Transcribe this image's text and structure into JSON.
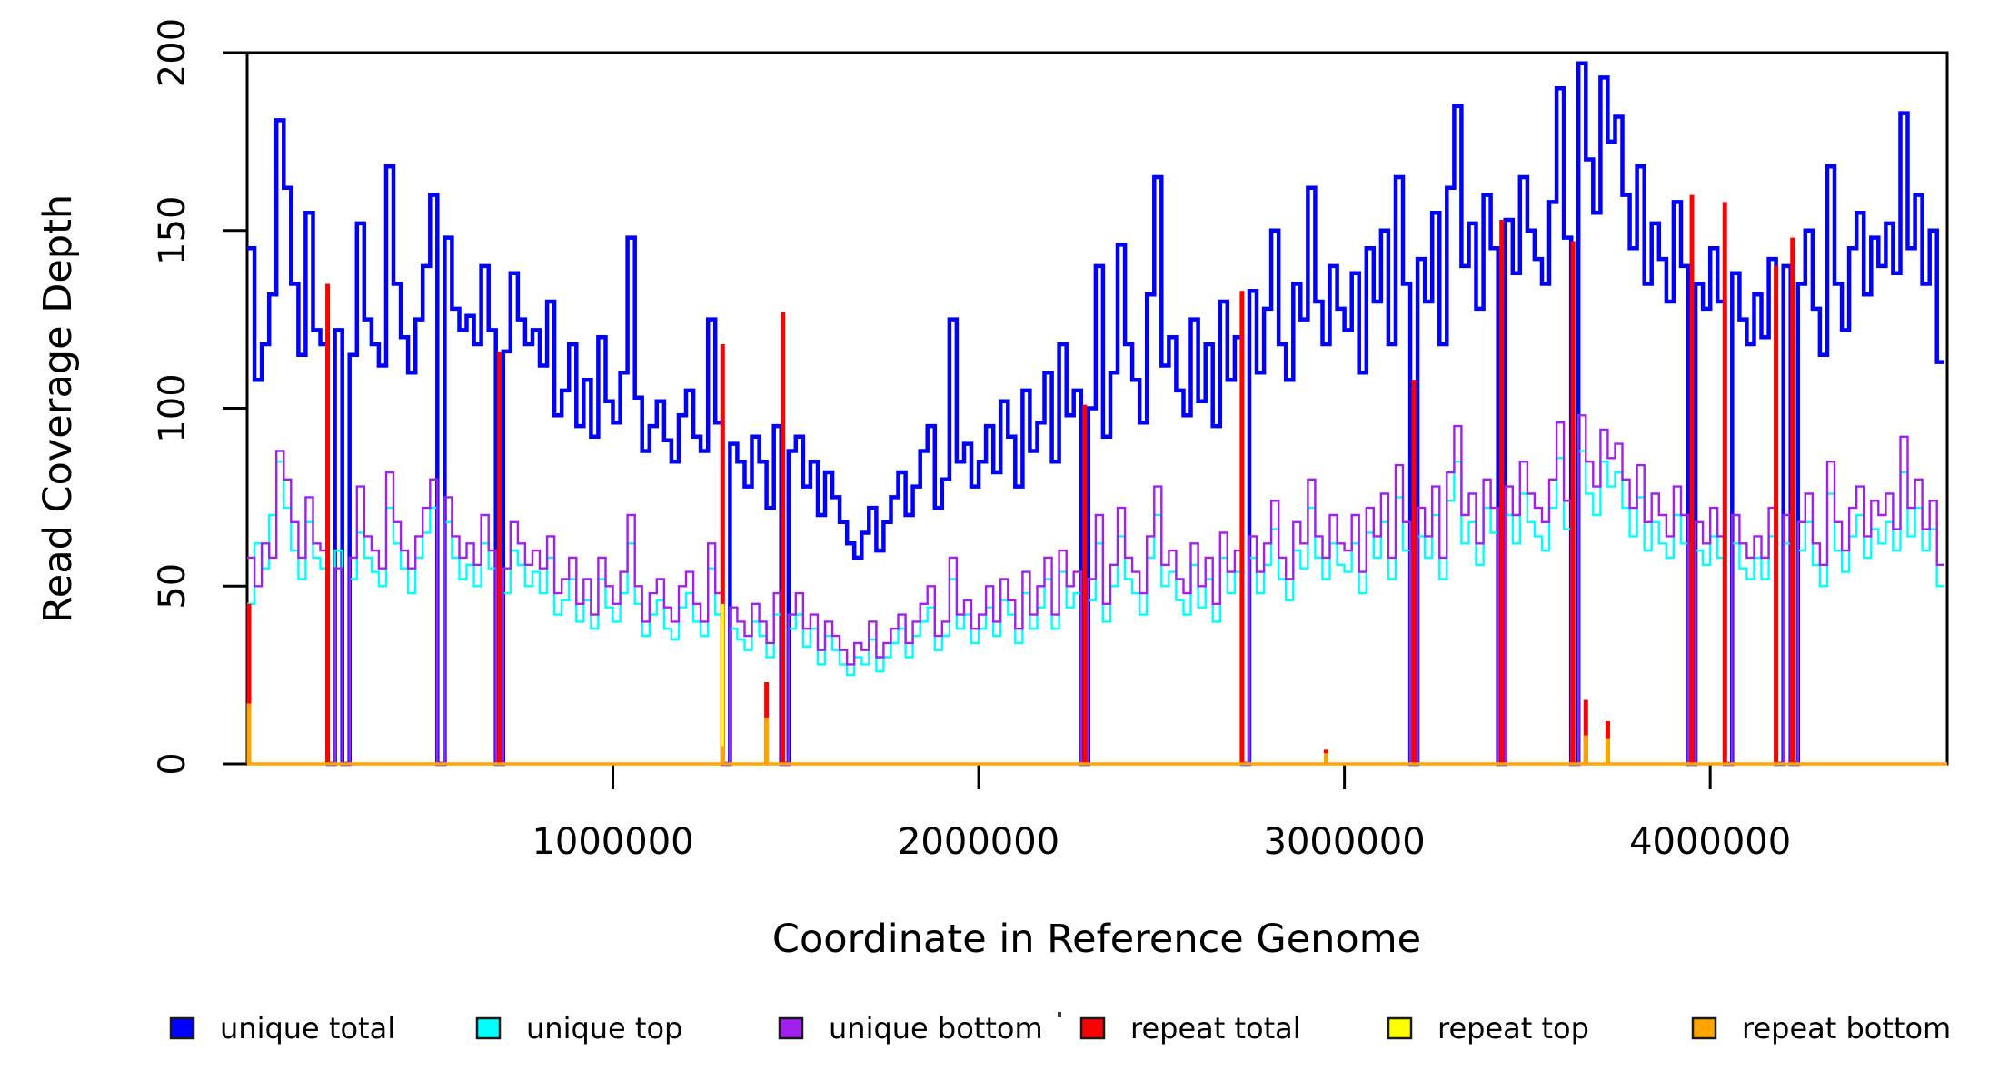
{
  "y_axis": {
    "title": "Read Coverage Depth",
    "range": [
      0,
      200
    ],
    "ticks": [
      0,
      50,
      100,
      150,
      200
    ],
    "tick_labels": [
      "0",
      "50",
      "100",
      "150",
      "200"
    ]
  },
  "x_axis": {
    "title": "Coordinate in Reference Genome",
    "range": [
      0,
      4648000
    ],
    "ticks": [
      1000000,
      2000000,
      3000000,
      4000000
    ],
    "tick_labels": [
      "1000000",
      "2000000",
      "3000000",
      "4000000"
    ]
  },
  "legend": {
    "items": [
      {
        "label": "unique total",
        "color": "#0000FF"
      },
      {
        "label": "unique top",
        "color": "#00FFFF"
      },
      {
        "label": "unique bottom",
        "color": "#A020F0"
      },
      {
        "label": "repeat total",
        "color": "#FF0000"
      },
      {
        "label": "repeat top",
        "color": "#FFFF00"
      },
      {
        "label": "repeat bottom",
        "color": "#FFA500"
      }
    ]
  },
  "chart_data": {
    "type": "line",
    "style": "step",
    "title": "",
    "xlabel": "Coordinate in Reference Genome",
    "ylabel": "Read Coverage Depth",
    "xlim": [
      0,
      4648000
    ],
    "ylim": [
      0,
      200
    ],
    "grid": false,
    "legend_position": "bottom",
    "bin_size_bp": 20000,
    "x_start_bp": 0,
    "series": [
      {
        "name": "unique total",
        "color": "#0000FF",
        "line_width": 4.5,
        "values": [
          145,
          108,
          118,
          132,
          181,
          162,
          135,
          115,
          155,
          122,
          118,
          0,
          122,
          0,
          115,
          152,
          125,
          118,
          112,
          168,
          135,
          120,
          110,
          125,
          140,
          160,
          0,
          148,
          128,
          122,
          126,
          118,
          140,
          122,
          0,
          116,
          138,
          125,
          118,
          122,
          112,
          130,
          98,
          105,
          118,
          95,
          108,
          92,
          120,
          102,
          96,
          110,
          148,
          103,
          88,
          95,
          102,
          91,
          85,
          98,
          105,
          92,
          88,
          125,
          96,
          0,
          90,
          85,
          78,
          92,
          85,
          72,
          95,
          0,
          88,
          92,
          78,
          85,
          70,
          82,
          75,
          68,
          62,
          58,
          65,
          72,
          60,
          68,
          75,
          82,
          70,
          78,
          88,
          95,
          72,
          80,
          125,
          85,
          90,
          78,
          85,
          95,
          82,
          102,
          92,
          78,
          105,
          88,
          96,
          110,
          85,
          118,
          98,
          105,
          0,
          100,
          140,
          92,
          110,
          146,
          118,
          108,
          96,
          132,
          165,
          112,
          120,
          105,
          98,
          125,
          102,
          118,
          95,
          130,
          108,
          120,
          0,
          133,
          110,
          128,
          150,
          118,
          108,
          135,
          125,
          162,
          130,
          118,
          140,
          128,
          122,
          138,
          110,
          145,
          130,
          150,
          118,
          165,
          135,
          0,
          142,
          130,
          155,
          118,
          162,
          185,
          140,
          152,
          128,
          160,
          145,
          0,
          153,
          138,
          165,
          150,
          142,
          135,
          158,
          190,
          148,
          0,
          197,
          170,
          155,
          193,
          175,
          182,
          160,
          145,
          168,
          135,
          152,
          142,
          130,
          158,
          140,
          0,
          135,
          128,
          145,
          130,
          0,
          138,
          125,
          118,
          132,
          120,
          142,
          0,
          140,
          0,
          135,
          150,
          128,
          115,
          168,
          135,
          122,
          145,
          155,
          132,
          148,
          140,
          152,
          138,
          183,
          145,
          160,
          135,
          150,
          113
        ]
      },
      {
        "name": "unique top",
        "color": "#00FFFF",
        "line_width": 2.4,
        "values": [
          45,
          62,
          55,
          70,
          85,
          72,
          60,
          52,
          68,
          58,
          55,
          0,
          60,
          0,
          52,
          65,
          58,
          54,
          50,
          72,
          62,
          55,
          48,
          58,
          65,
          72,
          0,
          68,
          58,
          52,
          56,
          50,
          62,
          55,
          0,
          48,
          60,
          56,
          50,
          54,
          48,
          58,
          42,
          46,
          52,
          40,
          46,
          38,
          52,
          44,
          40,
          48,
          62,
          45,
          36,
          42,
          46,
          38,
          35,
          44,
          48,
          40,
          36,
          55,
          42,
          0,
          38,
          35,
          32,
          40,
          36,
          30,
          42,
          0,
          38,
          42,
          33,
          38,
          28,
          36,
          32,
          28,
          25,
          30,
          28,
          35,
          26,
          30,
          34,
          38,
          30,
          36,
          40,
          44,
          32,
          36,
          52,
          38,
          42,
          34,
          38,
          44,
          36,
          46,
          42,
          34,
          48,
          38,
          44,
          52,
          38,
          54,
          44,
          48,
          0,
          46,
          62,
          40,
          50,
          64,
          52,
          48,
          42,
          58,
          70,
          50,
          54,
          46,
          42,
          56,
          44,
          52,
          40,
          58,
          48,
          54,
          0,
          58,
          48,
          56,
          66,
          52,
          46,
          60,
          55,
          72,
          58,
          52,
          62,
          56,
          54,
          62,
          48,
          65,
          58,
          68,
          52,
          75,
          60,
          0,
          64,
          58,
          70,
          52,
          74,
          85,
          62,
          68,
          56,
          72,
          65,
          0,
          70,
          62,
          76,
          68,
          64,
          60,
          72,
          86,
          66,
          0,
          88,
          76,
          70,
          85,
          78,
          82,
          72,
          64,
          75,
          60,
          68,
          62,
          58,
          70,
          62,
          0,
          60,
          56,
          64,
          58,
          0,
          62,
          55,
          52,
          58,
          52,
          64,
          0,
          62,
          0,
          60,
          68,
          56,
          50,
          76,
          60,
          54,
          64,
          70,
          58,
          66,
          62,
          68,
          60,
          82,
          64,
          72,
          60,
          66,
          50
        ]
      },
      {
        "name": "unique bottom",
        "color": "#A020F0",
        "line_width": 2.4,
        "values": [
          58,
          50,
          62,
          58,
          88,
          80,
          68,
          58,
          75,
          62,
          60,
          0,
          55,
          0,
          58,
          78,
          64,
          60,
          55,
          82,
          68,
          60,
          55,
          64,
          72,
          80,
          0,
          75,
          64,
          58,
          62,
          56,
          70,
          60,
          0,
          55,
          68,
          62,
          56,
          60,
          55,
          64,
          48,
          52,
          58,
          45,
          52,
          42,
          58,
          50,
          45,
          54,
          70,
          50,
          40,
          48,
          52,
          44,
          40,
          50,
          54,
          45,
          40,
          62,
          48,
          0,
          44,
          40,
          36,
          45,
          40,
          34,
          48,
          0,
          42,
          48,
          38,
          42,
          32,
          40,
          36,
          32,
          28,
          34,
          32,
          40,
          30,
          34,
          38,
          42,
          34,
          40,
          45,
          50,
          36,
          40,
          58,
          42,
          46,
          38,
          42,
          50,
          40,
          52,
          46,
          38,
          54,
          42,
          50,
          58,
          42,
          60,
          50,
          54,
          0,
          52,
          70,
          45,
          56,
          72,
          58,
          54,
          48,
          64,
          78,
          56,
          60,
          52,
          48,
          62,
          50,
          58,
          45,
          65,
          54,
          60,
          0,
          64,
          54,
          62,
          74,
          58,
          52,
          68,
          62,
          80,
          64,
          58,
          70,
          62,
          60,
          70,
          54,
          72,
          64,
          76,
          58,
          84,
          68,
          0,
          72,
          64,
          78,
          58,
          82,
          95,
          70,
          76,
          62,
          80,
          72,
          0,
          78,
          70,
          85,
          76,
          72,
          68,
          80,
          96,
          74,
          0,
          98,
          85,
          78,
          94,
          86,
          90,
          80,
          72,
          84,
          68,
          76,
          70,
          64,
          78,
          70,
          0,
          68,
          62,
          72,
          64,
          0,
          70,
          62,
          58,
          64,
          58,
          72,
          0,
          70,
          0,
          68,
          76,
          62,
          56,
          85,
          68,
          60,
          72,
          78,
          64,
          74,
          70,
          76,
          66,
          92,
          72,
          80,
          66,
          74,
          56
        ]
      },
      {
        "name": "repeat total",
        "color": "#FF0000",
        "render": "spikes",
        "spike_width": 5,
        "spikes_bp": [
          [
            5000,
            45
          ],
          [
            220000,
            135
          ],
          [
            690000,
            116
          ],
          [
            1300000,
            118
          ],
          [
            1420000,
            23
          ],
          [
            1465000,
            127
          ],
          [
            2290000,
            101
          ],
          [
            2720000,
            133
          ],
          [
            2950000,
            4
          ],
          [
            3190000,
            108
          ],
          [
            3430000,
            153
          ],
          [
            3625000,
            147
          ],
          [
            3660000,
            18
          ],
          [
            3720000,
            12
          ],
          [
            3950000,
            160
          ],
          [
            4040000,
            158
          ],
          [
            4180000,
            140
          ],
          [
            4225000,
            148
          ]
        ]
      },
      {
        "name": "repeat top",
        "color": "#FFFF00",
        "render": "spikes",
        "spike_width": 4,
        "spikes_bp": [
          [
            1300000,
            45
          ],
          [
            2950000,
            2
          ]
        ]
      },
      {
        "name": "repeat bottom",
        "color": "#FFA500",
        "render": "spikes",
        "spike_width": 5,
        "baseline": 0,
        "line_width": 3.5,
        "spikes_bp": [
          [
            5000,
            17
          ],
          [
            1300000,
            5
          ],
          [
            1420000,
            13
          ],
          [
            2950000,
            3
          ],
          [
            3660000,
            8
          ],
          [
            3720000,
            7
          ]
        ]
      }
    ]
  }
}
